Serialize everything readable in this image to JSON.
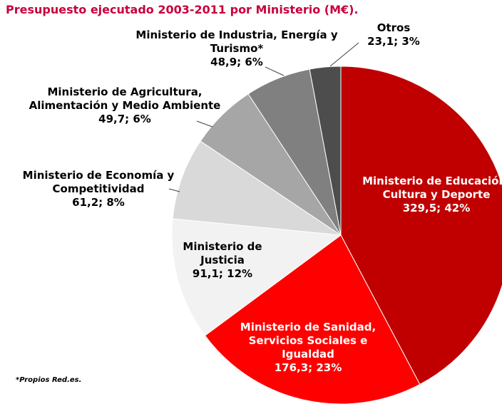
{
  "chart_data": {
    "type": "pie",
    "title": "Presupuesto ejecutado 2003-2011 por Ministerio (M€).",
    "categories": [
      "Ministerio de Educación, Cultura y Deporte",
      "Ministerio de Sanidad, Servicios Sociales e Igualdad",
      "Ministerio de Justicia",
      "Ministerio de Economía y Competitividad",
      "Ministerio de Agricultura, Alimentación y Medio Ambiente",
      "Ministerio de Industria, Energía y Turismo*",
      "Otros"
    ],
    "values": [
      329.5,
      176.3,
      91.1,
      61.2,
      49.7,
      48.9,
      23.1
    ],
    "value_labels": [
      "329,5; 42%",
      "176,3; 23%",
      "91,1; 12%",
      "61,2; 8%",
      "49,7; 6%",
      "48,9; 6%",
      "23,1; 3%"
    ],
    "colors": [
      "#c00000",
      "#ff0000",
      "#f2f2f2",
      "#d9d9d9",
      "#a6a6a6",
      "#808080",
      "#4d4d4d"
    ],
    "footnote": "*Propios Red.es."
  }
}
